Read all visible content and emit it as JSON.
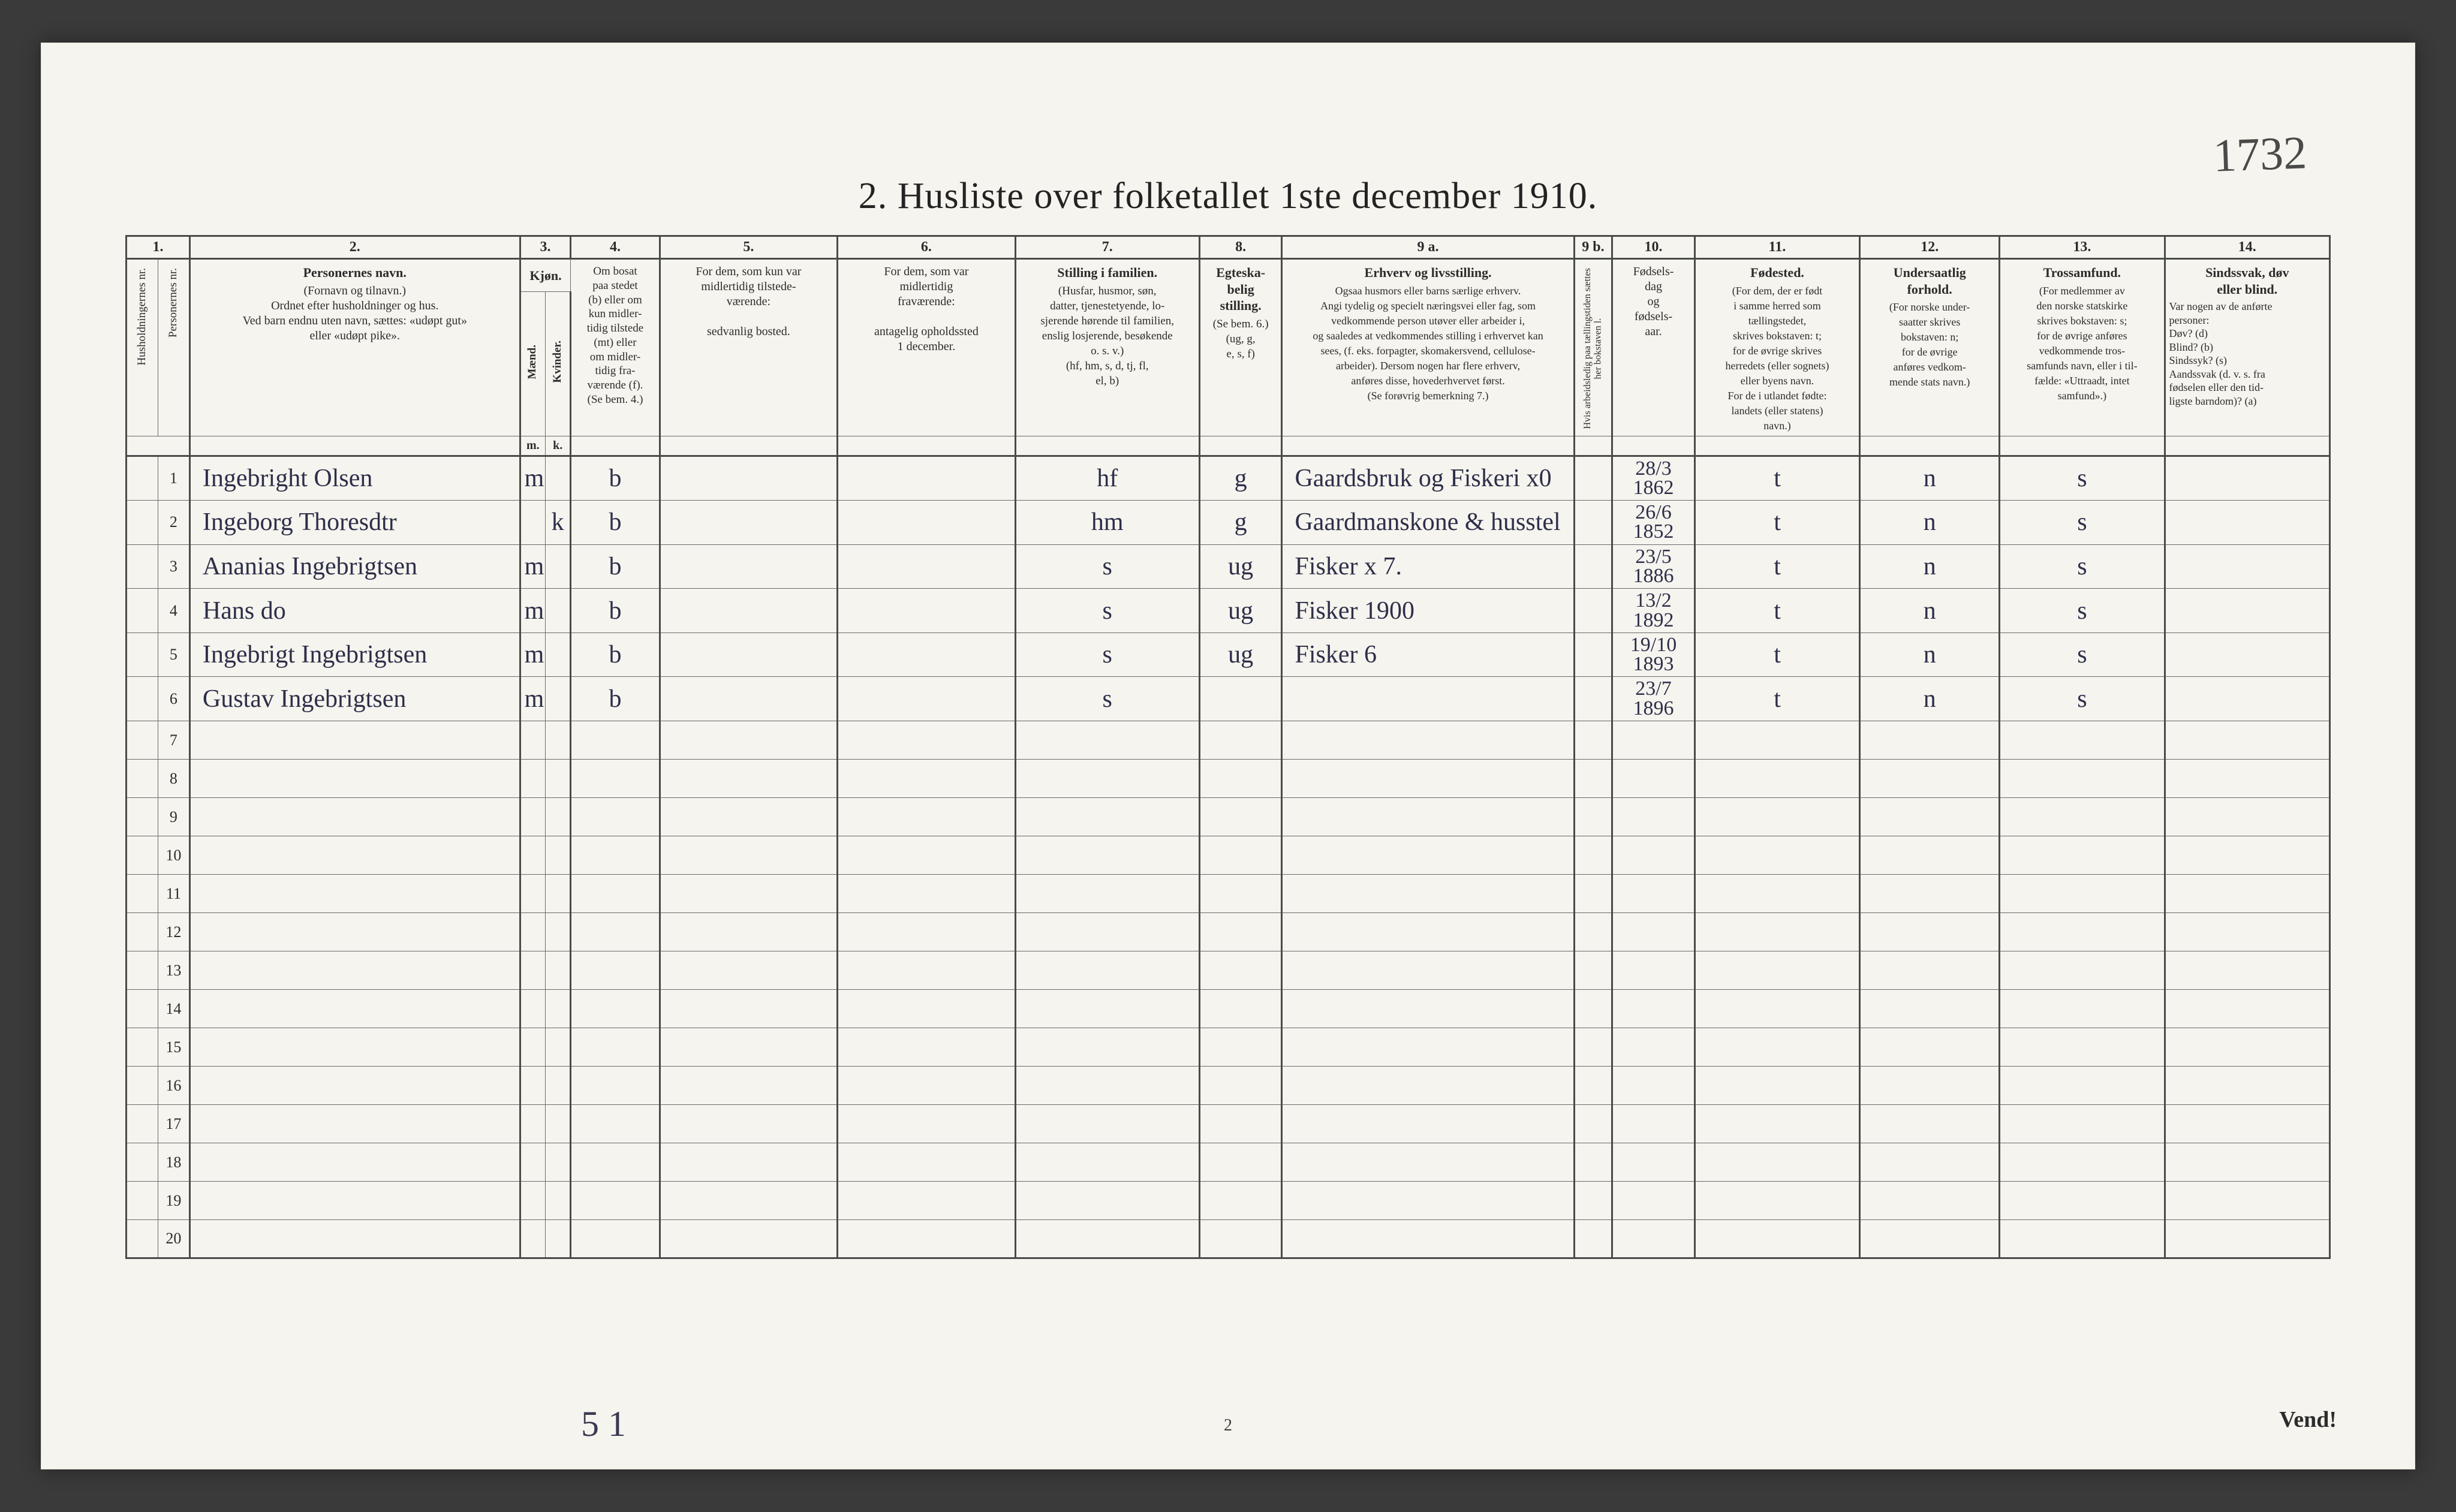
{
  "page_number_handwritten": "1732",
  "title": "2.  Husliste over folketallet 1ste december 1910.",
  "footer_page": "2",
  "footer_handwritten": "5 1",
  "footer_vend": "Vend!",
  "columns": {
    "c1": "1.",
    "c2": "2.",
    "c3": "3.",
    "c4": "4.",
    "c5": "5.",
    "c6": "6.",
    "c7": "7.",
    "c8": "8.",
    "c9a": "9 a.",
    "c9b": "9 b.",
    "c10": "10.",
    "c11": "11.",
    "c12": "12.",
    "c13": "13.",
    "c14": "14."
  },
  "headers": {
    "h1a": "Husholdningernes nr.",
    "h1b": "Personernes nr.",
    "h2_title": "Personernes navn.",
    "h2_body": "(Fornavn og tilnavn.)\nOrdnet efter husholdninger og hus.\nVed barn endnu uten navn, sættes: «udøpt gut»\neller «udøpt pike».",
    "h3_title": "Kjøn.",
    "h3a": "Mænd.",
    "h3b": "Kvinder.",
    "h3_sub_m": "m.",
    "h3_sub_k": "k.",
    "h4": "Om bosat\npaa stedet\n(b) eller om\nkun midler-\ntidig tilstede\n(mt) eller\nom midler-\ntidig fra-\nværende (f).\n(Se bem. 4.)",
    "h5": "For dem, som kun var\nmidlertidig tilstede-\nværende:\n\nsedvanlig bosted.",
    "h6": "For dem, som var\nmidlertidig\nfraværende:\n\nantagelig opholdssted\n1 december.",
    "h7_title": "Stilling i familien.",
    "h7_body": "(Husfar, husmor, søn,\ndatter, tjenestetyende, lo-\nsjerende hørende til familien,\nenslig losjerende, besøkende\no. s. v.)\n(hf, hm, s, d, tj, fl,\nel, b)",
    "h8_title": "Egteska-\nbelig\nstilling.",
    "h8_body": "(Se bem. 6.)\n(ug, g,\ne, s, f)",
    "h9a_title": "Erhverv og livsstilling.",
    "h9a_body": "Ogsaa husmors eller barns særlige erhverv.\nAngi tydelig og specielt næringsvei eller fag, som\nvedkommende person utøver eller arbeider i,\nog saaledes at vedkommendes stilling i erhvervet kan\nsees, (f. eks. forpagter, skomakersvend, cellulose-\narbeider). Dersom nogen har flere erhverv,\nanføres disse, hovederhvervet først.\n(Se forøvrig bemerkning 7.)",
    "h9b": "Hvis arbeidsledig\npaa tællingstiden sættes\nher bokstaven l.",
    "h10": "Fødsels-\ndag\nog\nfødsels-\naar.",
    "h11_title": "Fødested.",
    "h11_body": "(For dem, der er født\ni samme herred som\ntællingstedet,\nskrives bokstaven: t;\nfor de øvrige skrives\nherredets (eller sognets)\neller byens navn.\nFor de i utlandet fødte:\nlandets (eller statens)\nnavn.)",
    "h12_title": "Undersaatlig\nforhold.",
    "h12_body": "(For norske under-\nsaatter skrives\nbokstaven: n;\nfor de øvrige\nanføres vedkom-\nmende stats navn.)",
    "h13_title": "Trossamfund.",
    "h13_body": "(For medlemmer av\nden norske statskirke\nskrives bokstaven: s;\nfor de øvrige anføres\nvedkommende tros-\nsamfunds navn, eller i til-\nfælde: «Uttraadt, intet\nsamfund».)",
    "h14_title": "Sindssvak, døv\neller blind.",
    "h14_body": "Var nogen av de anførte\npersoner:\nDøv?        (d)\nBlind?       (b)\nSindssyk?  (s)\nAandssvak (d. v. s. fra\nfødselen eller den tid-\nligste barndom)?  (a)"
  },
  "rows": [
    {
      "n": "1",
      "name": "Ingebright Olsen",
      "mk": "m",
      "b": "b",
      "c5": "",
      "c6": "",
      "fam": "hf",
      "eg": "g",
      "erh": "Gaardsbruk og Fiskeri  x0",
      "c9b": "",
      "date": "28/3\n1862",
      "fod": "t",
      "und": "n",
      "tro": "s",
      "c14": ""
    },
    {
      "n": "2",
      "name": "Ingeborg Thoresdtr",
      "mk": "k",
      "b": "b",
      "c5": "",
      "c6": "",
      "fam": "hm",
      "eg": "g",
      "erh": "Gaardmanskone & husstel",
      "c9b": "",
      "date": "26/6\n1852",
      "fod": "t",
      "und": "n",
      "tro": "s",
      "c14": ""
    },
    {
      "n": "3",
      "name": "Ananias Ingebrigtsen",
      "mk": "m",
      "b": "b",
      "c5": "",
      "c6": "",
      "fam": "s",
      "eg": "ug",
      "erh": "Fisker   x 7.",
      "c9b": "",
      "date": "23/5\n1886",
      "fod": "t",
      "und": "n",
      "tro": "s",
      "c14": ""
    },
    {
      "n": "4",
      "name": "Hans   do",
      "mk": "m",
      "b": "b",
      "c5": "",
      "c6": "",
      "fam": "s",
      "eg": "ug",
      "erh": "Fisker     1900",
      "c9b": "",
      "date": "13/2\n1892",
      "fod": "t",
      "und": "n",
      "tro": "s",
      "c14": ""
    },
    {
      "n": "5",
      "name": "Ingebrigt Ingebrigtsen",
      "mk": "m",
      "b": "b",
      "c5": "",
      "c6": "",
      "fam": "s",
      "eg": "ug",
      "erh": "Fisker     6",
      "c9b": "",
      "date": "19/10\n1893",
      "fod": "t",
      "und": "n",
      "tro": "s",
      "c14": ""
    },
    {
      "n": "6",
      "name": "Gustav Ingebrigtsen",
      "mk": "m",
      "b": "b",
      "c5": "",
      "c6": "",
      "fam": "s",
      "eg": "",
      "erh": "",
      "c9b": "",
      "date": "23/7\n1896",
      "fod": "t",
      "und": "n",
      "tro": "s",
      "c14": ""
    }
  ],
  "empty_rows": [
    "7",
    "8",
    "9",
    "10",
    "11",
    "12",
    "13",
    "14",
    "15",
    "16",
    "17",
    "18",
    "19",
    "20"
  ],
  "style": {
    "page_bg": "#f6f4ee",
    "border_color": "#6a6a6a",
    "ink_color": "#2d2f4a",
    "print_color": "#2c2c2c"
  }
}
